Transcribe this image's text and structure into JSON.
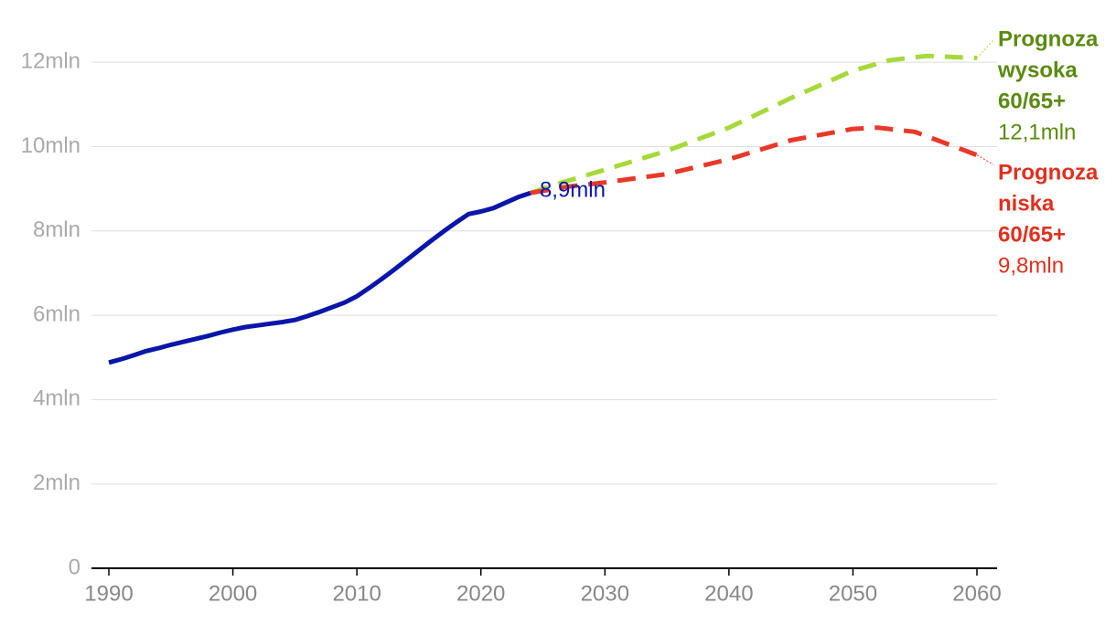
{
  "chart_data": {
    "type": "line",
    "ylim": [
      0,
      13
    ],
    "yticks": [
      0,
      {
        "value": 2,
        "label": "2mln"
      },
      {
        "value": 4,
        "label": "4mln"
      },
      {
        "value": 6,
        "label": "6mln"
      },
      {
        "value": 8,
        "label": "8mln"
      },
      {
        "value": 10,
        "label": "10mln"
      },
      {
        "value": 12,
        "label": "12mln"
      }
    ],
    "xlim": [
      1990,
      2060
    ],
    "xticks": [
      1990,
      2000,
      2010,
      2020,
      2030,
      2040,
      2050,
      2060
    ],
    "grid": true,
    "series": [
      {
        "color": "#0a16a8",
        "dashed": false,
        "x": [
          1990,
          1991,
          1992,
          1993,
          1994,
          1995,
          1996,
          1997,
          1998,
          1999,
          2000,
          2001,
          2002,
          2003,
          2004,
          2005,
          2006,
          2007,
          2008,
          2009,
          2010,
          2011,
          2012,
          2013,
          2014,
          2015,
          2016,
          2017,
          2018,
          2019,
          2020,
          2021,
          2022,
          2023,
          2024
        ],
        "values": [
          4.88,
          4.96,
          5.05,
          5.15,
          5.22,
          5.3,
          5.37,
          5.44,
          5.51,
          5.59,
          5.66,
          5.72,
          5.76,
          5.8,
          5.84,
          5.89,
          5.98,
          6.08,
          6.19,
          6.3,
          6.45,
          6.65,
          6.86,
          7.08,
          7.31,
          7.54,
          7.77,
          7.99,
          8.2,
          8.4,
          8.46,
          8.54,
          8.67,
          8.8,
          8.9
        ],
        "value_labels": [
          null,
          null,
          null,
          null,
          null,
          null,
          null,
          null,
          null,
          null,
          null,
          null,
          null,
          null,
          null,
          null,
          null,
          null,
          null,
          null,
          null,
          null,
          null,
          null,
          null,
          null,
          null,
          null,
          null,
          null,
          null,
          null,
          null,
          null,
          "8,9mln"
        ]
      },
      {
        "color": "#a6d93a",
        "label_color": "#5a8a0f",
        "dashed": true,
        "label_lines": [
          "Prognoza",
          "wysoka",
          "60/65+"
        ],
        "x": [
          2024,
          2026,
          2030,
          2035,
          2040,
          2045,
          2050,
          2053,
          2056,
          2060
        ],
        "values": [
          8.9,
          9.1,
          9.45,
          9.9,
          10.45,
          11.15,
          11.8,
          12.05,
          12.15,
          12.1
        ],
        "value_labels": [
          null,
          null,
          null,
          null,
          null,
          null,
          null,
          null,
          null,
          "12,1mln"
        ]
      },
      {
        "color": "#e8382a",
        "label_color": "#e0301e",
        "dashed": true,
        "label_lines": [
          "Prognoza",
          "niska",
          "60/65+"
        ],
        "x": [
          2024,
          2027,
          2030,
          2035,
          2040,
          2045,
          2050,
          2052,
          2055,
          2060
        ],
        "values": [
          8.9,
          9.05,
          9.15,
          9.35,
          9.7,
          10.15,
          10.42,
          10.45,
          10.35,
          9.8
        ],
        "value_labels": [
          null,
          null,
          null,
          null,
          null,
          null,
          null,
          null,
          null,
          "9,8mln"
        ]
      }
    ]
  }
}
